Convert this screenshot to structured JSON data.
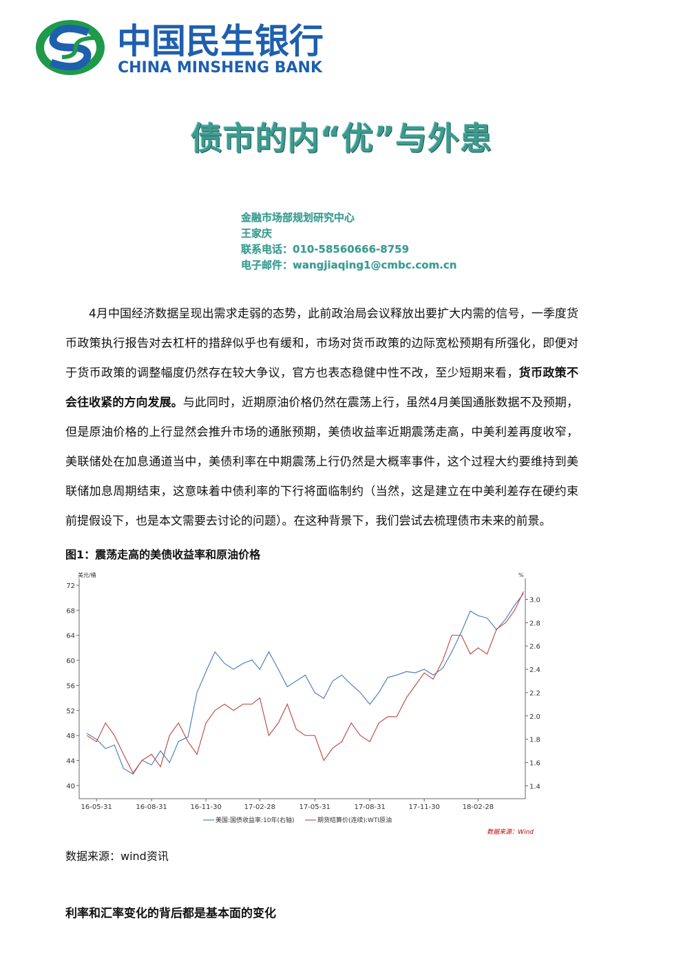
{
  "header": {
    "logo_cn": "中国民生银行",
    "logo_en": "CHINA MINSHENG BANK"
  },
  "title": "债市的内“优”与外患",
  "author": {
    "dept": "金融市场部规划研究中心",
    "name": "王家庆",
    "phone": "联系电话：010-58560666-8759",
    "email": "电子邮件：wangjiaqing1@cmbc.com.cn"
  },
  "body": {
    "paragraph": [
      "4月中国经济数据呈现出需求走弱的态势，此前政治局会议释放出要扩大内需的信号，一季度货币政策执行报告对去杠杆的措辞似乎也有缓和，市场对货币政策的边际宽松预期有所强化，即便对于货币政策的调整幅度仍然存在较大争议，官方也表态稳健中性不改，至少短期来看，",
      "货币政策不会往收紧的方向发展。",
      "与此同时，近期原油价格仍然在震荡上行，虽然4月美国通胀数据不及预期，但是原油价格的上行显然会推升市场的通胀预期，美债收益率近期震荡走高，中美利差再度收窄，美联储处在加息通道当中，美债利率在中期震荡上行仍然是大概率事件，这个过程大约要维持到美联储加息周期结束，这意味着中债利率的下行将面临制约（当然，这是建立在中美利差存在硬约束前提假设下，也是本文需要去讨论的问题）。在这种背景下，我们尝试去梳理债市未来的前景。"
    ]
  },
  "figure": {
    "caption": "图1：震荡走高的美债收益率和原油价格",
    "chart_data": {
      "type": "line",
      "y_unit": "美元/桶",
      "y2_unit": "%",
      "source_note": "数据来源：Wind",
      "x": [
        "2016-05-15",
        "2016-05-31",
        "2016-06-15",
        "2016-06-30",
        "2016-07-15",
        "2016-07-31",
        "2016-08-15",
        "2016-08-31",
        "2016-09-15",
        "2016-09-30",
        "2016-10-15",
        "2016-10-31",
        "2016-11-15",
        "2016-11-30",
        "2016-12-15",
        "2016-12-31",
        "2017-01-15",
        "2017-01-31",
        "2017-02-15",
        "2017-02-28",
        "2017-03-15",
        "2017-03-31",
        "2017-04-15",
        "2017-04-30",
        "2017-05-15",
        "2017-05-31",
        "2017-06-15",
        "2017-06-30",
        "2017-07-15",
        "2017-07-31",
        "2017-08-15",
        "2017-08-31",
        "2017-09-15",
        "2017-09-30",
        "2017-10-15",
        "2017-10-31",
        "2017-11-15",
        "2017-11-30",
        "2017-12-15",
        "2017-12-31",
        "2018-01-15",
        "2018-01-31",
        "2018-02-15",
        "2018-02-28",
        "2018-03-15",
        "2018-03-31",
        "2018-04-15",
        "2018-04-30",
        "2018-05-15"
      ],
      "xlim": [
        "2016-05-02",
        "2018-05-18"
      ],
      "xticks": [
        {
          "value": "2016-05-31",
          "label": "16-05-31"
        },
        {
          "value": "2016-08-31",
          "label": "16-08-31"
        },
        {
          "value": "2016-11-30",
          "label": "16-11-30"
        },
        {
          "value": "2017-02-28",
          "label": "17-02-28"
        },
        {
          "value": "2017-05-31",
          "label": "17-05-31"
        },
        {
          "value": "2017-08-31",
          "label": "17-08-31"
        },
        {
          "value": "2017-11-30",
          "label": "17-11-30"
        },
        {
          "value": "2018-02-28",
          "label": "18-02-28"
        }
      ],
      "ylim": [
        37.9,
        73.1
      ],
      "yticks": [
        40,
        44,
        48,
        52,
        56,
        60,
        64,
        68,
        72
      ],
      "y2lim": [
        1.29,
        3.18
      ],
      "y2ticks": [
        1.4,
        1.6,
        1.8,
        {
          "value": 2.0,
          "label": "2.0"
        },
        2.2,
        2.4,
        2.6,
        2.8,
        {
          "value": 3.0,
          "label": "3.0"
        }
      ],
      "series": [
        {
          "name": "美国:国债收益率:10年(右轴)",
          "color": "#4f81bd",
          "axis": "y2",
          "values": [
            1.85,
            1.8,
            1.72,
            1.75,
            1.55,
            1.5,
            1.62,
            1.58,
            1.7,
            1.6,
            1.78,
            1.82,
            2.2,
            2.38,
            2.55,
            2.45,
            2.4,
            2.45,
            2.48,
            2.4,
            2.55,
            2.4,
            2.25,
            2.3,
            2.35,
            2.2,
            2.15,
            2.3,
            2.35,
            2.27,
            2.2,
            2.1,
            2.2,
            2.33,
            2.35,
            2.38,
            2.37,
            2.4,
            2.35,
            2.41,
            2.55,
            2.72,
            2.9,
            2.86,
            2.84,
            2.74,
            2.83,
            2.95,
            3.05
          ]
        },
        {
          "name": "期货结算价(连续):WTI原油",
          "color": "#c0504d",
          "values": [
            48,
            47,
            50,
            48,
            45,
            42,
            44,
            45,
            43,
            48,
            50,
            47,
            45,
            50,
            52,
            53,
            52,
            53,
            53,
            54,
            48,
            50,
            53,
            49,
            48,
            48,
            44,
            46,
            47,
            50,
            48,
            47,
            50,
            51,
            51,
            54,
            56,
            58,
            57,
            60,
            64,
            64,
            61,
            62,
            61,
            65,
            66,
            68,
            71
          ]
        }
      ]
    }
  },
  "source": "数据来源：wind资讯",
  "section_heading": "利率和汇率变化的背后都是基本面的变化"
}
